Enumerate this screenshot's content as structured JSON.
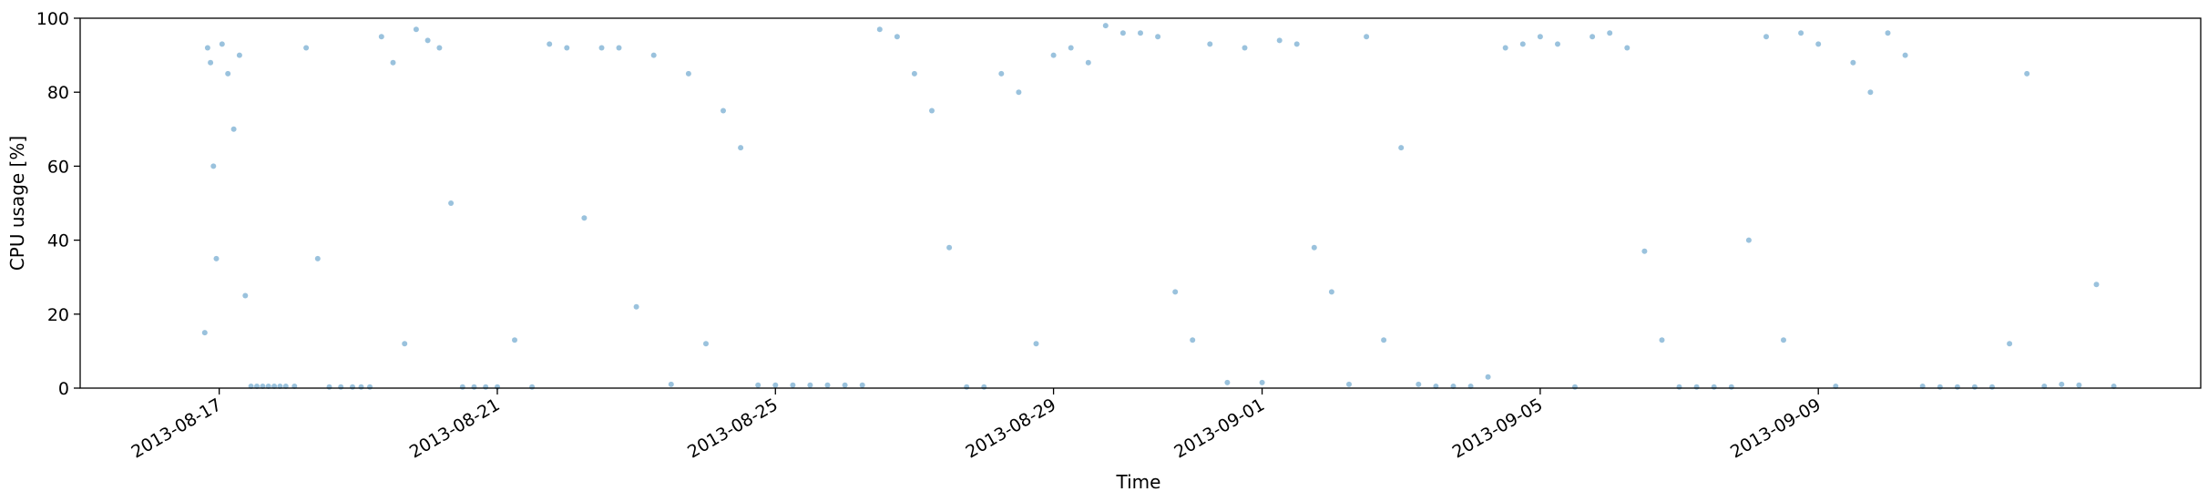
{
  "chart_data": {
    "type": "scatter",
    "title": "",
    "xlabel": "Time",
    "ylabel": "CPU usage [%]",
    "x_type": "date",
    "xlim": [
      "2013-08-15T00:00",
      "2013-09-14T12:00"
    ],
    "ylim": [
      0,
      100
    ],
    "x_ticks": [
      "2013-08-17",
      "2013-08-21",
      "2013-08-25",
      "2013-08-29",
      "2013-09-01",
      "2013-09-05",
      "2013-09-09"
    ],
    "y_ticks": [
      0,
      20,
      40,
      60,
      80,
      100
    ],
    "grid": false,
    "legend": "none",
    "marker_color": "#1f77b4",
    "marker_alpha": 0.45,
    "series": [
      {
        "x": [
          "2013-08-16T19:00",
          "2013-08-16T20:00",
          "2013-08-16T21:00",
          "2013-08-16T22:00",
          "2013-08-16T23:00",
          "2013-08-17T01:00",
          "2013-08-17T03:00",
          "2013-08-17T05:00",
          "2013-08-17T07:00",
          "2013-08-17T09:00",
          "2013-08-17T11:00",
          "2013-08-17T13:00",
          "2013-08-17T15:00",
          "2013-08-17T17:00",
          "2013-08-17T19:00",
          "2013-08-17T21:00",
          "2013-08-17T23:00",
          "2013-08-18T02:00",
          "2013-08-18T06:00",
          "2013-08-18T10:00",
          "2013-08-18T14:00",
          "2013-08-18T18:00",
          "2013-08-18T22:00",
          "2013-08-19T01:00",
          "2013-08-19T04:00",
          "2013-08-19T08:00",
          "2013-08-19T12:00",
          "2013-08-19T16:00",
          "2013-08-19T20:00",
          "2013-08-20T00:00",
          "2013-08-20T04:00",
          "2013-08-20T08:00",
          "2013-08-20T12:00",
          "2013-08-20T16:00",
          "2013-08-20T20:00",
          "2013-08-21T00:00",
          "2013-08-21T06:00",
          "2013-08-21T12:00",
          "2013-08-21T18:00",
          "2013-08-22T00:00",
          "2013-08-22T06:00",
          "2013-08-22T12:00",
          "2013-08-22T18:00",
          "2013-08-23T00:00",
          "2013-08-23T06:00",
          "2013-08-23T12:00",
          "2013-08-23T18:00",
          "2013-08-24T00:00",
          "2013-08-24T06:00",
          "2013-08-24T12:00",
          "2013-08-24T18:00",
          "2013-08-25T00:00",
          "2013-08-25T06:00",
          "2013-08-25T12:00",
          "2013-08-25T18:00",
          "2013-08-26T00:00",
          "2013-08-26T06:00",
          "2013-08-26T12:00",
          "2013-08-26T18:00",
          "2013-08-27T00:00",
          "2013-08-27T06:00",
          "2013-08-27T12:00",
          "2013-08-27T18:00",
          "2013-08-28T00:00",
          "2013-08-28T06:00",
          "2013-08-28T12:00",
          "2013-08-28T18:00",
          "2013-08-29T00:00",
          "2013-08-29T06:00",
          "2013-08-29T12:00",
          "2013-08-29T18:00",
          "2013-08-30T00:00",
          "2013-08-30T06:00",
          "2013-08-30T12:00",
          "2013-08-30T18:00",
          "2013-08-31T00:00",
          "2013-08-31T06:00",
          "2013-08-31T12:00",
          "2013-08-31T18:00",
          "2013-09-01T00:00",
          "2013-09-01T06:00",
          "2013-09-01T12:00",
          "2013-09-01T18:00",
          "2013-09-02T00:00",
          "2013-09-02T06:00",
          "2013-09-02T12:00",
          "2013-09-02T18:00",
          "2013-09-03T00:00",
          "2013-09-03T06:00",
          "2013-09-03T12:00",
          "2013-09-03T18:00",
          "2013-09-04T00:00",
          "2013-09-04T06:00",
          "2013-09-04T12:00",
          "2013-09-04T18:00",
          "2013-09-05T00:00",
          "2013-09-05T06:00",
          "2013-09-05T12:00",
          "2013-09-05T18:00",
          "2013-09-06T00:00",
          "2013-09-06T06:00",
          "2013-09-06T12:00",
          "2013-09-06T18:00",
          "2013-09-07T00:00",
          "2013-09-07T06:00",
          "2013-09-07T12:00",
          "2013-09-07T18:00",
          "2013-09-08T00:00",
          "2013-09-08T06:00",
          "2013-09-08T12:00",
          "2013-09-08T18:00",
          "2013-09-09T00:00",
          "2013-09-09T06:00",
          "2013-09-09T12:00",
          "2013-09-09T18:00",
          "2013-09-10T00:00",
          "2013-09-10T06:00",
          "2013-09-10T12:00",
          "2013-09-10T18:00",
          "2013-09-11T00:00",
          "2013-09-11T06:00",
          "2013-09-11T12:00",
          "2013-09-11T18:00",
          "2013-09-12T00:00",
          "2013-09-12T06:00",
          "2013-09-12T12:00",
          "2013-09-12T18:00",
          "2013-09-13T00:00",
          "2013-09-13T06:00"
        ],
        "y": [
          15,
          92,
          88,
          60,
          35,
          93,
          85,
          70,
          90,
          25,
          0.5,
          0.5,
          0.5,
          0.5,
          0.5,
          0.5,
          0.5,
          0.5,
          92,
          35,
          0.3,
          0.3,
          0.3,
          0.3,
          0.3,
          95,
          88,
          12,
          97,
          94,
          92,
          50,
          0.3,
          0.3,
          0.3,
          0.3,
          13,
          0.3,
          93,
          92,
          46,
          92,
          92,
          22,
          90,
          1,
          85,
          12,
          75,
          65,
          0.8,
          0.8,
          0.8,
          0.8,
          0.8,
          0.8,
          0.8,
          97,
          95,
          85,
          75,
          38,
          0.3,
          0.3,
          85,
          80,
          12,
          90,
          92,
          88,
          98,
          96,
          96,
          95,
          26,
          13,
          93,
          1.5,
          92,
          1.5,
          94,
          93,
          38,
          26,
          1,
          95,
          13,
          65,
          1,
          0.5,
          0.5,
          0.5,
          3,
          92,
          93,
          95,
          93,
          0.3,
          95,
          96,
          92,
          37,
          13,
          0.3,
          0.3,
          0.3,
          0.3,
          40,
          95,
          13,
          96,
          93,
          0.5,
          88,
          80,
          96,
          90,
          0.5,
          0.3,
          0.3,
          0.3,
          0.3,
          12,
          85,
          0.5,
          1,
          0.8,
          28,
          0.5
        ]
      }
    ]
  }
}
